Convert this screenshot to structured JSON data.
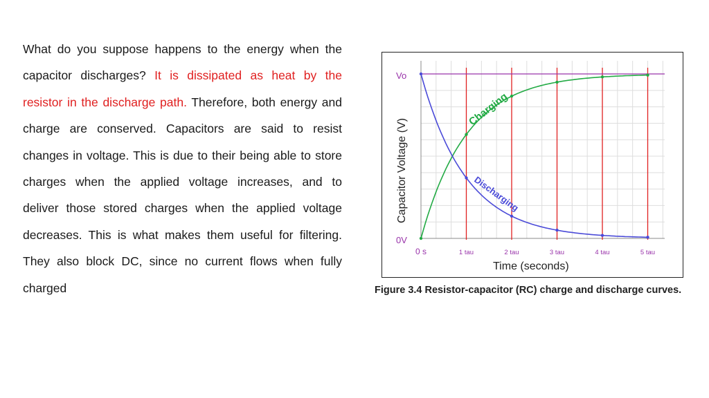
{
  "paragraph": {
    "part1": "What do you suppose happens to the energy when the capacitor discharges? ",
    "highlight": "It is dissipated as heat by the resistor in the discharge path.",
    "part2": " Therefore, both energy and charge are conserved. Capacitors are said to resist changes in voltage. This is due to their being able to store charges when the applied voltage increases, and to deliver those stored charges when the applied voltage decreases. This is what makes them useful for filtering. They also block DC, since no current flows when fully charged"
  },
  "caption": "Figure  3.4 Resistor-capacitor (RC) charge and discharge curves.",
  "colors": {
    "text": "#1a1a1a",
    "highlight": "#e02020",
    "charging": "#22aa44",
    "discharging": "#4a4ad8",
    "vo_line": "#9933aa",
    "tau_lines": "#e02020",
    "grid": "#dddddd"
  },
  "chart_data": {
    "type": "line",
    "ylabel": "Capacitor Voltage (V)",
    "xlabel": "Time (seconds)",
    "y_top_label": "Vo",
    "y_bottom_label": "0V",
    "x_tick_labels": [
      "0 s",
      "1 tau",
      "2 tau",
      "3 tau",
      "4 tau",
      "5 tau"
    ],
    "x_ticks": [
      0,
      1,
      2,
      3,
      4,
      5
    ],
    "xlim": [
      0,
      5.5
    ],
    "ylim": [
      0,
      1
    ],
    "series": [
      {
        "name": "Charging",
        "x": [
          0,
          1,
          2,
          3,
          4,
          5
        ],
        "values": [
          0,
          0.632,
          0.865,
          0.95,
          0.982,
          0.993
        ]
      },
      {
        "name": "Discharging",
        "x": [
          0,
          1,
          2,
          3,
          4,
          5
        ],
        "values": [
          1,
          0.368,
          0.135,
          0.05,
          0.018,
          0.007
        ]
      }
    ],
    "grid": true
  }
}
